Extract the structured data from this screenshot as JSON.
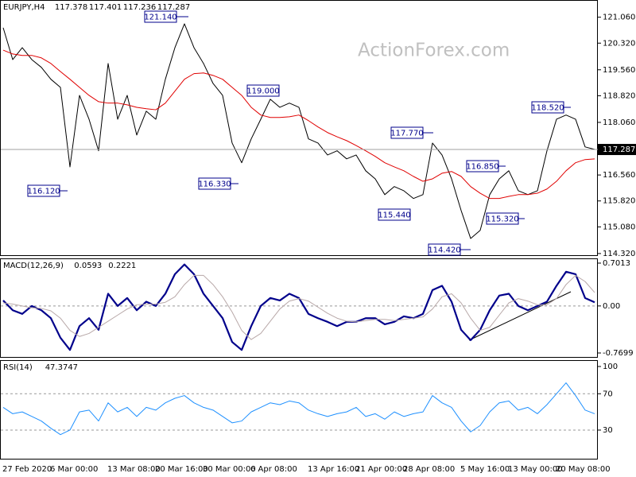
{
  "chart_data": [
    {
      "type": "line",
      "title": "EURJPY,H4",
      "header_values": [
        "117.378",
        "117.401",
        "117.236",
        "117.287"
      ],
      "watermark": "ActionForex.com",
      "categories": [
        "27 Feb 2020",
        null,
        null,
        null,
        null,
        "6 Mar 00:00",
        null,
        null,
        null,
        null,
        null,
        "13 Mar 08:00",
        null,
        null,
        null,
        null,
        "20 Mar 16:00",
        null,
        null,
        null,
        null,
        "30 Mar 00:00",
        null,
        null,
        null,
        null,
        "6 Apr 08:00",
        null,
        null,
        null,
        null,
        null,
        "13 Apr 16:00",
        null,
        null,
        null,
        null,
        "21 Apr 00:00",
        null,
        null,
        null,
        null,
        "28 Apr 08:00",
        null,
        null,
        null,
        null,
        null,
        "5 May 16:00",
        null,
        null,
        null,
        null,
        "13 May 00:00",
        null,
        null,
        null,
        null,
        "20 May 08:00",
        null,
        null,
        null,
        null
      ],
      "series": [
        {
          "color": "#000000",
          "values": [
            120.76,
            119.85,
            120.19,
            119.85,
            119.63,
            119.29,
            119.06,
            116.79,
            118.83,
            118.15,
            117.25,
            119.74,
            118.15,
            118.83,
            117.7,
            118.38,
            118.15,
            119.29,
            120.19,
            120.87,
            120.19,
            119.74,
            119.17,
            118.83,
            117.47,
            116.91,
            117.59,
            118.15,
            118.72,
            118.49,
            118.61,
            118.49,
            117.59,
            117.47,
            117.13,
            117.25,
            117.02,
            117.13,
            116.68,
            116.45,
            116.0,
            116.23,
            116.11,
            115.89,
            116.0,
            117.47,
            117.13,
            116.45,
            115.55,
            114.75,
            114.98,
            116.0,
            116.45,
            116.68,
            116.11,
            116.0,
            116.11,
            117.25,
            118.15,
            118.27,
            118.15,
            117.36,
            117.29
          ]
        },
        {
          "color": "#e00000",
          "values": [
            120.12,
            120.01,
            119.97,
            119.97,
            119.9,
            119.74,
            119.51,
            119.29,
            119.06,
            118.83,
            118.65,
            118.61,
            118.61,
            118.56,
            118.49,
            118.45,
            118.42,
            118.61,
            118.95,
            119.29,
            119.45,
            119.47,
            119.4,
            119.29,
            119.06,
            118.83,
            118.49,
            118.27,
            118.2,
            118.2,
            118.22,
            118.27,
            118.11,
            117.93,
            117.77,
            117.65,
            117.54,
            117.4,
            117.25,
            117.09,
            116.91,
            116.79,
            116.68,
            116.52,
            116.38,
            116.45,
            116.61,
            116.66,
            116.52,
            116.23,
            116.04,
            115.89,
            115.89,
            115.95,
            116.0,
            116.0,
            116.04,
            116.16,
            116.38,
            116.68,
            116.91,
            117.0,
            117.02
          ]
        }
      ],
      "ylim": [
        114.25,
        121.55
      ],
      "yticks": [
        {
          "value": 121.06,
          "label": "121.060"
        },
        {
          "value": 120.32,
          "label": "120.320"
        },
        {
          "value": 119.56,
          "label": "119.560"
        },
        {
          "value": 118.82,
          "label": "118.820"
        },
        {
          "value": 118.06,
          "label": "118.060"
        },
        {
          "value": 116.56,
          "label": "116.560"
        },
        {
          "value": 115.82,
          "label": "115.820"
        },
        {
          "value": 115.08,
          "label": "115.080"
        },
        {
          "value": 114.32,
          "label": "114.320"
        }
      ],
      "last_price": {
        "value": 117.287,
        "label": "117.287"
      },
      "annotations": [
        "121.140",
        "116.120",
        "116.330",
        "119.000",
        "117.770",
        "115.440",
        "116.850",
        "115.320",
        "114.420",
        "118.520"
      ]
    },
    {
      "type": "line",
      "title": "MACD(12,26,9)",
      "header_values": [
        "0.0593",
        "0.2221"
      ],
      "series": [
        {
          "color": "#00008b",
          "values": [
            0.09,
            -0.07,
            -0.13,
            0,
            -0.07,
            -0.2,
            -0.52,
            -0.72,
            -0.33,
            -0.2,
            -0.39,
            0.2,
            0,
            0.13,
            -0.07,
            0.07,
            0,
            0.2,
            0.52,
            0.68,
            0.52,
            0.2,
            0,
            -0.2,
            -0.59,
            -0.72,
            -0.33,
            0,
            0.13,
            0.09,
            0.2,
            0.13,
            -0.13,
            -0.2,
            -0.26,
            -0.33,
            -0.26,
            -0.26,
            -0.2,
            -0.2,
            -0.3,
            -0.26,
            -0.17,
            -0.2,
            -0.13,
            0.26,
            0.33,
            0.07,
            -0.39,
            -0.56,
            -0.39,
            -0.07,
            0.17,
            0.2,
            0,
            -0.07,
            0,
            0.07,
            0.33,
            0.56,
            0.52,
            0.13,
            0.06
          ]
        },
        {
          "color": "#b8a8a8",
          "values": [
            0.05,
            0.03,
            0,
            -0.03,
            -0.04,
            -0.08,
            -0.2,
            -0.4,
            -0.5,
            -0.45,
            -0.35,
            -0.25,
            -0.15,
            -0.05,
            0.02,
            0.03,
            0.03,
            0.06,
            0.15,
            0.35,
            0.5,
            0.5,
            0.35,
            0.15,
            -0.1,
            -0.4,
            -0.55,
            -0.45,
            -0.25,
            -0.05,
            0.08,
            0.12,
            0.08,
            -0.02,
            -0.12,
            -0.2,
            -0.25,
            -0.26,
            -0.24,
            -0.22,
            -0.22,
            -0.24,
            -0.22,
            -0.2,
            -0.18,
            -0.05,
            0.15,
            0.2,
            0.05,
            -0.2,
            -0.4,
            -0.35,
            -0.15,
            0.05,
            0.12,
            0.08,
            0.02,
            0.02,
            0.12,
            0.35,
            0.5,
            0.4,
            0.22
          ]
        }
      ],
      "ylim": [
        -0.848,
        0.779
      ],
      "yticks": [
        0.7013,
        {
          "value": 0,
          "label": "0.00"
        },
        -0.7699
      ],
      "levels": [
        0
      ]
    },
    {
      "type": "line",
      "title": "RSI(14)",
      "header_values": [
        "47.3747"
      ],
      "series": [
        {
          "color": "#1e90ff",
          "values": [
            55,
            48,
            50,
            45,
            40,
            32,
            25,
            30,
            50,
            52,
            40,
            60,
            50,
            55,
            45,
            55,
            52,
            60,
            65,
            68,
            60,
            55,
            52,
            45,
            38,
            40,
            50,
            55,
            60,
            58,
            62,
            60,
            52,
            48,
            45,
            48,
            50,
            55,
            45,
            48,
            42,
            50,
            45,
            48,
            50,
            68,
            60,
            55,
            40,
            28,
            35,
            50,
            60,
            62,
            52,
            55,
            48,
            58,
            70,
            82,
            68,
            52,
            48
          ]
        }
      ],
      "ylim": [
        -2.4,
        107
      ],
      "yticks": [
        100,
        70,
        30
      ],
      "levels": [
        70,
        30
      ]
    }
  ]
}
